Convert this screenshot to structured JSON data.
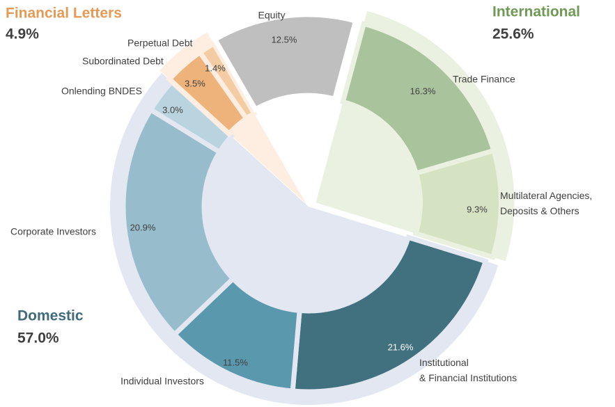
{
  "chart_data": {
    "type": "sunburst",
    "groups": [
      {
        "name": "International",
        "value": 25.6,
        "value_label": "25.6%",
        "color": "#ebf1e0",
        "label_color": "#6f9a55",
        "segments": [
          {
            "name": "Trade Finance",
            "value": 16.3,
            "value_label": "16.3%",
            "color": "#a9c49c"
          },
          {
            "name": "Multilateral Agencies,\nDeposits & Others",
            "value": 9.3,
            "value_label": "9.3%",
            "color": "#d6e3c3"
          }
        ]
      },
      {
        "name": "Domestic",
        "value": 57.0,
        "value_label": "57.0%",
        "color": "#e2e7f1",
        "label_color": "#3f6b7a",
        "segments": [
          {
            "name": "Institutional\n& Financial Institutions",
            "value": 21.6,
            "value_label": "21.6%",
            "color": "#41717f"
          },
          {
            "name": "Individual Investors",
            "value": 11.5,
            "value_label": "11.5%",
            "color": "#5a98ad"
          },
          {
            "name": "Corporate Investors",
            "value": 20.9,
            "value_label": "20.9%",
            "color": "#97bccb"
          },
          {
            "name": "Onlending BNDES",
            "value": 3.0,
            "value_label": "3.0%",
            "color": "#b9d4de"
          }
        ]
      },
      {
        "name": "Financial Letters",
        "value": 4.9,
        "value_label": "4.9%",
        "color": "#fdeee1",
        "label_color": "#e59a55",
        "segments": [
          {
            "name": "Subordinated Debt",
            "value": 3.5,
            "value_label": "3.5%",
            "color": "#edb37a"
          },
          {
            "name": "Perpetual Debt",
            "value": 1.4,
            "value_label": "1.4%",
            "color": "#f3cca3"
          }
        ]
      },
      {
        "segments": [
          {
            "name": "Equity",
            "value": 12.5,
            "value_label": "12.5%",
            "color": "#bfbfbf"
          }
        ]
      }
    ]
  }
}
